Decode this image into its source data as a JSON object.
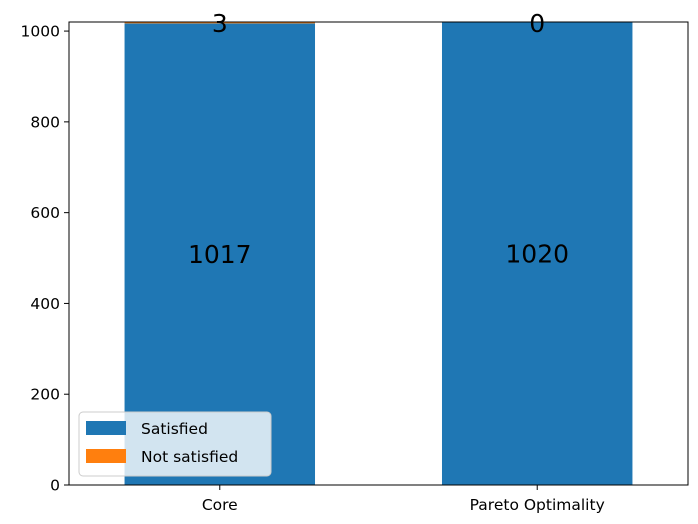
{
  "chart_data": {
    "type": "bar",
    "stacked": true,
    "categories": [
      "Core",
      "Pareto Optimality"
    ],
    "series": [
      {
        "name": "Satisfied",
        "values": [
          1017,
          1020
        ],
        "color": "#1f77b4"
      },
      {
        "name": "Not satisfied",
        "values": [
          3,
          0
        ],
        "color": "#ff7f0e"
      }
    ],
    "bar_labels": {
      "satisfied": [
        "1017",
        "1020"
      ],
      "not_satisfied": [
        "3",
        "0"
      ]
    },
    "yticks": [
      0,
      200,
      400,
      600,
      800,
      1000
    ],
    "ylim": [
      0,
      1020
    ],
    "title": "",
    "xlabel": "",
    "ylabel": "",
    "grid": false,
    "legend_position": "lower-left"
  }
}
